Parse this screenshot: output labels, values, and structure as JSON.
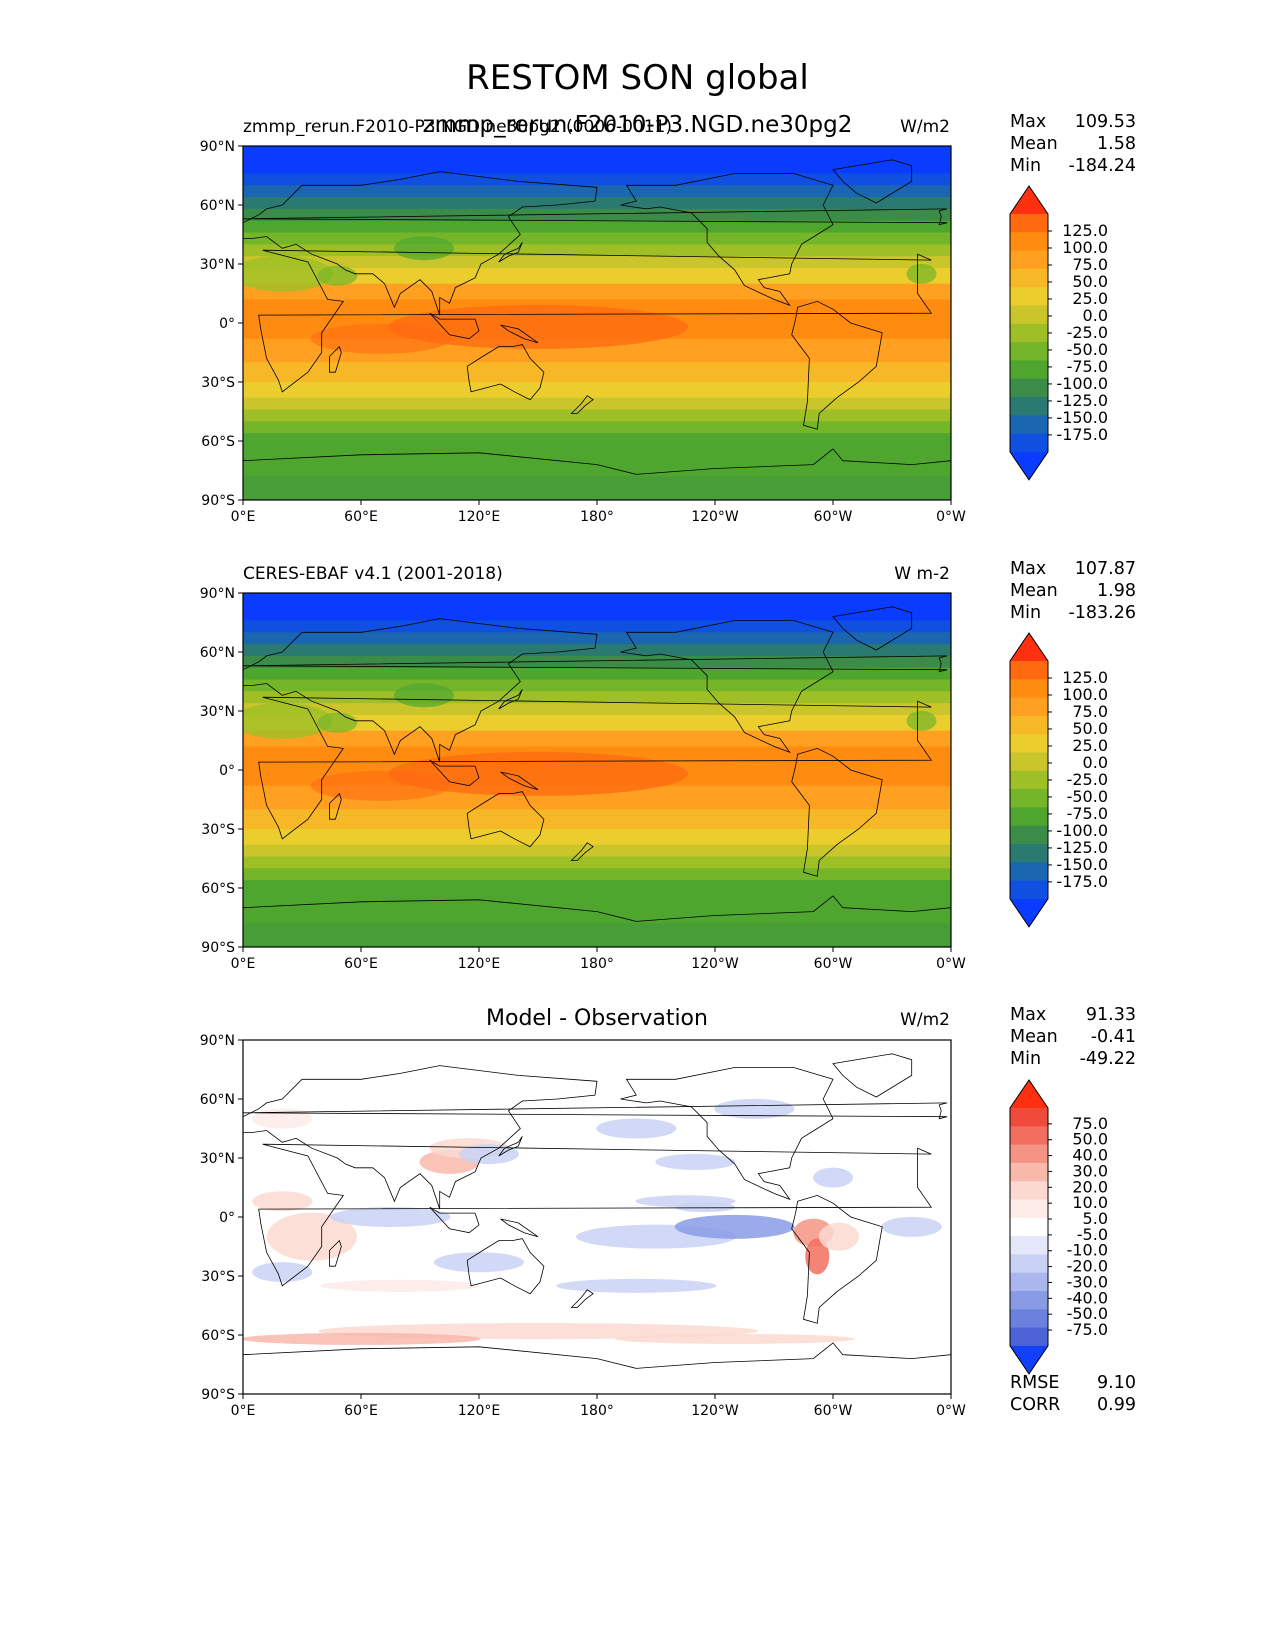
{
  "title": "RESTOM SON global",
  "overlap_title": "zmmp_rerun.F2010-P3.NGD.ne30pg2",
  "x_ticks": [
    "0°E",
    "60°E",
    "120°E",
    "180°",
    "120°W",
    "60°W",
    "0°W"
  ],
  "y_ticks": [
    "90°N",
    "60°N",
    "30°N",
    "0°",
    "30°S",
    "60°S",
    "90°S"
  ],
  "panels": [
    {
      "left_title": "zmmp_rerun.F2010-P3.NGD.ne30pg2 (0006-0011)",
      "center_title": "",
      "units": "W/m2",
      "stats": {
        "max_label": "Max",
        "max": "109.53",
        "mean_label": "Mean",
        "mean": "1.58",
        "min_label": "Min",
        "min": "-184.24"
      },
      "cbar_labels": [
        "125.0",
        "100.0",
        "75.0",
        "50.0",
        "25.0",
        "0.0",
        "-25.0",
        "-50.0",
        "-75.0",
        "-100.0",
        "-125.0",
        "-150.0",
        "-175.0"
      ]
    },
    {
      "left_title": "CERES-EBAF v4.1 (2001-2018)",
      "center_title": "",
      "units": "W m-2",
      "stats": {
        "max_label": "Max",
        "max": "107.87",
        "mean_label": "Mean",
        "mean": "1.98",
        "min_label": "Min",
        "min": "-183.26"
      },
      "cbar_labels": [
        "125.0",
        "100.0",
        "75.0",
        "50.0",
        "25.0",
        "0.0",
        "-25.0",
        "-50.0",
        "-75.0",
        "-100.0",
        "-125.0",
        "-150.0",
        "-175.0"
      ]
    },
    {
      "left_title": "",
      "center_title": "Model - Observation",
      "units": "W/m2",
      "stats": {
        "max_label": "Max",
        "max": "91.33",
        "mean_label": "Mean",
        "mean": "-0.41",
        "min_label": "Min",
        "min": "-49.22"
      },
      "cbar_labels": [
        "75.0",
        "50.0",
        "40.0",
        "30.0",
        "20.0",
        "10.0",
        "5.0",
        "-5.0",
        "-10.0",
        "-20.0",
        "-30.0",
        "-40.0",
        "-50.0",
        "-75.0"
      ],
      "rmse_label": "RMSE",
      "rmse": "9.10",
      "corr_label": "CORR",
      "corr": "0.99"
    }
  ],
  "colors": {
    "full_field": [
      "#ff3010",
      "#ff6a10",
      "#ff8c10",
      "#ffa020",
      "#f7b828",
      "#eccd2e",
      "#c9c52a",
      "#9ebf25",
      "#74b52a",
      "#4ea62e",
      "#3b8c48",
      "#2a7a72",
      "#1b66b0",
      "#1050e0",
      "#0a3cff"
    ],
    "difference": [
      "#ff3010",
      "#f04a3a",
      "#f26e5e",
      "#f59484",
      "#f8b8aa",
      "#fbd9d0",
      "#fcebe6",
      "#ffffff",
      "#e4e8fa",
      "#c9d2f4",
      "#aab6ee",
      "#8a9be6",
      "#6c80de",
      "#4e64d6",
      "#1240f8"
    ]
  },
  "chart_data": [
    {
      "type": "heatmap",
      "title": "zmmp_rerun.F2010-P3.NGD.ne30pg2 (0006-0011)",
      "units": "W/m2",
      "xlim": [
        0,
        360
      ],
      "ylim": [
        -90,
        90
      ],
      "color_levels": [
        -175,
        -150,
        -125,
        -100,
        -75,
        -50,
        -25,
        0,
        25,
        50,
        75,
        100,
        125
      ],
      "zonal_mean_profile": {
        "lat": [
          90,
          75,
          60,
          45,
          30,
          15,
          0,
          -15,
          -30,
          -45,
          -60,
          -75,
          -90
        ],
        "value": [
          -180,
          -150,
          -100,
          -50,
          10,
          70,
          90,
          75,
          50,
          10,
          -60,
          -95,
          -95
        ]
      },
      "max": 109.53,
      "mean": 1.58,
      "min": -184.24
    },
    {
      "type": "heatmap",
      "title": "CERES-EBAF v4.1 (2001-2018)",
      "units": "W m-2",
      "xlim": [
        0,
        360
      ],
      "ylim": [
        -90,
        90
      ],
      "color_levels": [
        -175,
        -150,
        -125,
        -100,
        -75,
        -50,
        -25,
        0,
        25,
        50,
        75,
        100,
        125
      ],
      "zonal_mean_profile": {
        "lat": [
          90,
          75,
          60,
          45,
          30,
          15,
          0,
          -15,
          -30,
          -45,
          -60,
          -75,
          -90
        ],
        "value": [
          -180,
          -150,
          -105,
          -50,
          10,
          70,
          88,
          72,
          50,
          10,
          -60,
          -95,
          -95
        ]
      },
      "max": 107.87,
      "mean": 1.98,
      "min": -183.26
    },
    {
      "type": "heatmap",
      "title": "Model - Observation",
      "units": "W/m2",
      "xlim": [
        0,
        360
      ],
      "ylim": [
        -90,
        90
      ],
      "color_levels": [
        -75,
        -50,
        -40,
        -30,
        -20,
        -10,
        -5,
        5,
        10,
        20,
        30,
        40,
        50,
        75
      ],
      "max": 91.33,
      "mean": -0.41,
      "min": -49.22,
      "rmse": 9.1,
      "corr": 0.99
    }
  ]
}
